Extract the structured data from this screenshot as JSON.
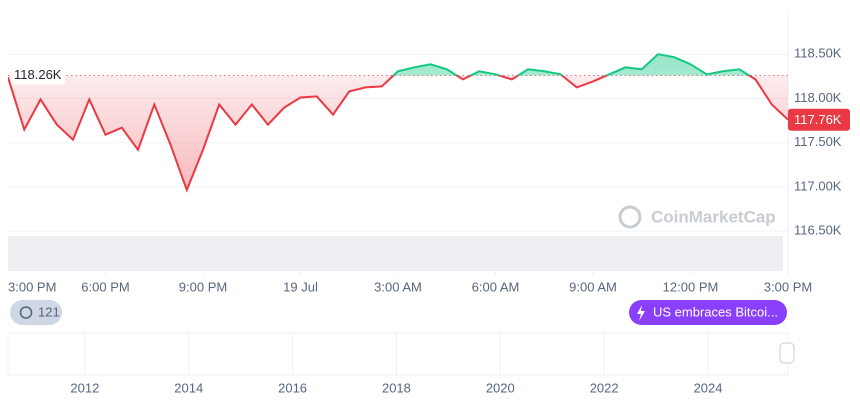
{
  "chart_data": {
    "type": "line",
    "series": [
      {
        "name": "Price",
        "x": [
          0,
          0.5,
          1,
          1.5,
          2,
          2.5,
          3,
          3.5,
          4,
          4.5,
          5,
          5.5,
          6,
          6.5,
          7,
          7.5,
          8,
          8.5,
          9,
          9.5,
          10,
          10.5,
          11,
          11.5,
          12,
          12.5,
          13,
          13.5,
          14,
          14.5,
          15,
          15.5,
          16,
          16.5,
          17,
          17.5,
          18,
          18.5,
          19,
          19.5,
          20,
          20.5,
          21,
          21.5,
          22,
          22.5,
          23,
          23.5,
          24
        ],
        "values": [
          118239,
          117648,
          117989,
          117705,
          117534,
          117989,
          117591,
          117670,
          117420,
          117932,
          117477,
          116966,
          117420,
          117932,
          117705,
          117932,
          117705,
          117898,
          118011,
          118023,
          117818,
          118080,
          118125,
          118136,
          118307,
          118352,
          118386,
          118330,
          118216,
          118307,
          118273,
          118216,
          118330,
          118307,
          118273,
          118125,
          118193,
          118273,
          118352,
          118330,
          118500,
          118466,
          118386,
          118273,
          118307,
          118330,
          118216,
          117932,
          117760
        ]
      }
    ],
    "up_color": "#16c784",
    "down_color": "#ea3943",
    "baseline": {
      "value": 118260,
      "label": "118.26K"
    },
    "last_price": {
      "value": 117760,
      "label": "117.76K"
    },
    "xlim": [
      0,
      24
    ],
    "xticks": [
      {
        "value": 0,
        "label": "3:00 PM"
      },
      {
        "value": 3,
        "label": "6:00 PM"
      },
      {
        "value": 6,
        "label": "9:00 PM"
      },
      {
        "value": 9,
        "label": "19 Jul"
      },
      {
        "value": 12,
        "label": "3:00 AM"
      },
      {
        "value": 15,
        "label": "6:00 AM"
      },
      {
        "value": 18,
        "label": "9:00 AM"
      },
      {
        "value": 21,
        "label": "12:00 PM"
      },
      {
        "value": 24,
        "label": "3:00 PM"
      }
    ],
    "ylim": [
      116050,
      119000
    ],
    "yticks": [
      {
        "value": 116500,
        "label": "116.50K"
      },
      {
        "value": 117000,
        "label": "117.00K"
      },
      {
        "value": 117500,
        "label": "117.50K"
      },
      {
        "value": 118000,
        "label": "118.00K"
      },
      {
        "value": 118500,
        "label": "118.50K"
      }
    ],
    "grid": true,
    "watermark": "CoinMarketCap"
  },
  "navigator": {
    "xlim": [
      2010.52,
      2025.54
    ],
    "xticks": [
      2012,
      2014,
      2016,
      2018,
      2020,
      2022,
      2024
    ]
  },
  "ui": {
    "news_count": "121",
    "event": "US embraces Bitcoi..."
  }
}
